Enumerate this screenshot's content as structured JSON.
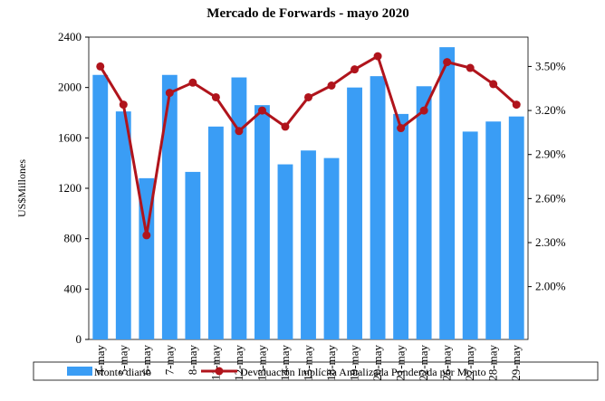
{
  "chart_data": {
    "type": "bar-line",
    "title": "Mercado de Forwards - mayo 2020",
    "y_label": "US$Millones",
    "categories": [
      "4-may",
      "5-may",
      "6-may",
      "7-may",
      "8-may",
      "11-may",
      "12-may",
      "13-may",
      "14-may",
      "15-may",
      "18-may",
      "19-may",
      "20-may",
      "21-may",
      "22-may",
      "26-may",
      "27-may",
      "28-may",
      "29-may"
    ],
    "series": [
      {
        "name": "Monto diario",
        "type": "bar",
        "color": "#3a9df5",
        "values": [
          2100,
          1810,
          1280,
          2100,
          1330,
          1690,
          2080,
          1860,
          1390,
          1500,
          1440,
          2000,
          2090,
          1790,
          2010,
          2320,
          1650,
          1730,
          1770
        ]
      },
      {
        "name": "Devaluación Implícita Anualizada Ponderada por Monto",
        "type": "line",
        "axis": "y2",
        "color": "#b0141c",
        "values": [
          3.5,
          3.24,
          2.35,
          3.32,
          3.39,
          3.29,
          3.06,
          3.2,
          3.09,
          3.29,
          3.37,
          3.48,
          3.57,
          3.08,
          3.2,
          3.53,
          3.49,
          3.38,
          3.24
        ]
      }
    ],
    "ylim": [
      0,
      2400
    ],
    "yticks": [
      0,
      400,
      800,
      1200,
      1600,
      2000,
      2400
    ],
    "y2lim": [
      1.64,
      3.7
    ],
    "y2ticks": [
      {
        "value": 2.0,
        "label": "2.00%"
      },
      {
        "value": 2.3,
        "label": "2.30%"
      },
      {
        "value": 2.6,
        "label": "2.60%"
      },
      {
        "value": 2.9,
        "label": "2.90%"
      },
      {
        "value": 3.2,
        "label": "3.20%"
      },
      {
        "value": 3.5,
        "label": "3.50%"
      }
    ],
    "legend": "bottom"
  }
}
